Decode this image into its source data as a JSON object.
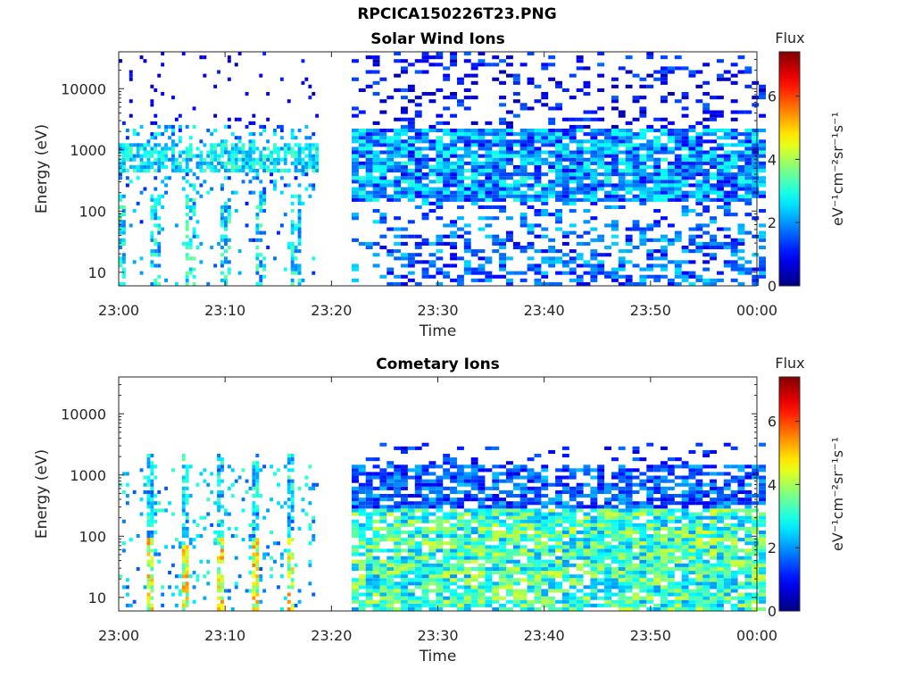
{
  "figure": {
    "title": "RPCICA150226T23.PNG"
  },
  "chart_data": [
    {
      "type": "heatmap",
      "title": "Solar Wind Ions",
      "xlabel": "Time",
      "ylabel": "Energy (eV)",
      "x_tick_labels": [
        "23:00",
        "23:10",
        "23:20",
        "23:30",
        "23:40",
        "23:50",
        "00:00"
      ],
      "x_range_minutes": [
        0,
        60
      ],
      "y_scale": "log",
      "y_range": [
        6,
        40000
      ],
      "y_ticks": [
        10,
        100,
        1000,
        10000
      ],
      "y_tick_labels": [
        "10",
        "100",
        "1000",
        "10000"
      ],
      "colorbar": {
        "title": "Flux",
        "label": "eV⁻¹cm⁻²sr⁻¹s⁻¹",
        "range": [
          0,
          7.4
        ],
        "ticks": [
          0,
          2,
          4,
          6
        ],
        "colormap": "jet"
      },
      "grid": false,
      "data_gap_minutes": [
        18.6,
        21.9
      ],
      "summary": "Early period (23:00-23:19): sparse patchy flux ~2-4 concentrated near 500-1000 eV with isolated vertical streaks down to ~10 eV. After 23:22: broad band of flux ~1-3 from ~150 to ~2000 eV, scattered horizontal stripes up to ~30000 eV, blocky low flux 8-40 eV."
    },
    {
      "type": "heatmap",
      "title": "Cometary Ions",
      "xlabel": "Time",
      "ylabel": "Energy (eV)",
      "x_tick_labels": [
        "23:00",
        "23:10",
        "23:20",
        "23:30",
        "23:40",
        "23:50",
        "00:00"
      ],
      "x_range_minutes": [
        0,
        60
      ],
      "y_scale": "log",
      "y_range": [
        6,
        40000
      ],
      "y_ticks": [
        10,
        100,
        1000,
        10000
      ],
      "y_tick_labels": [
        "10",
        "100",
        "1000",
        "10000"
      ],
      "colorbar": {
        "title": "Flux",
        "label": "eV⁻¹cm⁻²sr⁻¹s⁻¹",
        "range": [
          0,
          7.4
        ],
        "ticks": [
          0,
          2,
          4,
          6
        ],
        "colormap": "jet"
      },
      "grid": false,
      "data_gap_minutes": [
        18.6,
        21.9
      ],
      "summary": "Periodic vertical bursts (~every 3.3 min) from ~8 to ~2000 eV with highest flux (4-6) below 100 eV. After 23:25: continuous flux ~2-4 between 8 and ~300 eV, weaker ~1-2 from 300 to ~1500 eV, stripes up to ~3500 eV."
    }
  ]
}
